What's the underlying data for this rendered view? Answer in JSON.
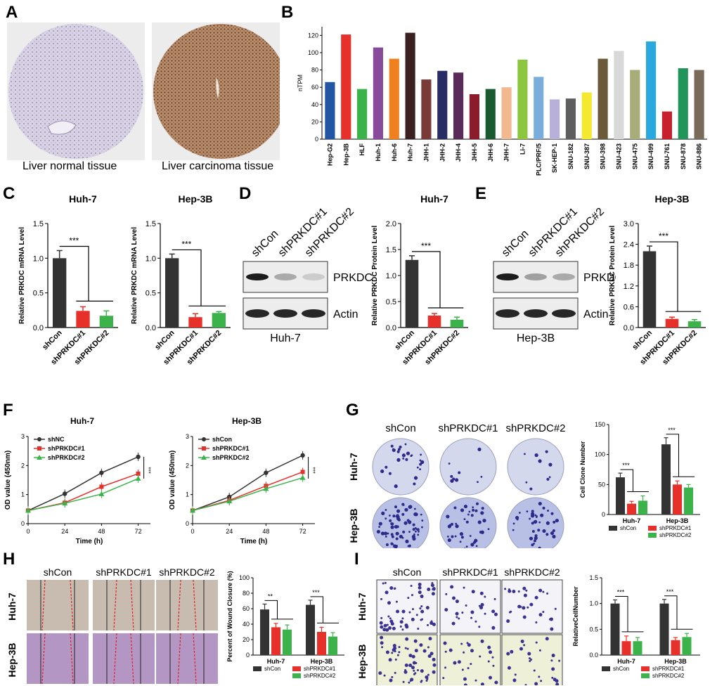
{
  "panels": {
    "A": {
      "label": "A",
      "captions": [
        "Liver normal tissue",
        "Liver carcinoma tissue"
      ]
    },
    "B": {
      "label": "B",
      "chart_data": {
        "type": "bar",
        "ylabel": "nTPM",
        "ylim": [
          0,
          130
        ],
        "yticks": [
          0,
          20,
          40,
          60,
          80,
          100,
          120
        ],
        "categories": [
          "Hep-G2",
          "Hep-3B",
          "HLF",
          "Huh-1",
          "Huh-6",
          "Huh-7",
          "JHH-1",
          "JHH-2",
          "JHH-4",
          "JHH-5",
          "JHH-6",
          "JHH-7",
          "Li-7",
          "PLC/PRF/5",
          "SK-HEP-1",
          "SNU-182",
          "SNU-387",
          "SNU-398",
          "SNU-423",
          "SNU-475",
          "SNU-499",
          "SNU-761",
          "SNU-878",
          "SNU-886"
        ],
        "values": [
          66,
          121,
          58,
          106,
          93,
          123,
          69,
          79,
          77,
          52,
          58,
          60,
          92,
          72,
          46,
          47,
          54,
          93,
          102,
          80,
          113,
          32,
          82,
          80
        ],
        "colors": [
          "#2255a4",
          "#e8302a",
          "#3cb34a",
          "#8a4a9c",
          "#f07f20",
          "#3a2020",
          "#7a3a38",
          "#2a2c66",
          "#5a2a5a",
          "#8a1c2c",
          "#1a5a30",
          "#f2b890",
          "#8cc63f",
          "#7aaddc",
          "#b8b0d8",
          "#5e5e5e",
          "#f4e830",
          "#6a5a3a",
          "#d8d8d8",
          "#a8ac78",
          "#2aa8e0",
          "#c8202c",
          "#20955a",
          "#7a6a5a"
        ]
      }
    },
    "C": {
      "label": "C",
      "charts": [
        {
          "title": "Huh-7",
          "ylabel": "Relative PRKDC mRNA Level",
          "categories": [
            "shCon",
            "shPRKDC#1",
            "shPRKDC#2"
          ],
          "values": [
            1.0,
            0.24,
            0.17
          ],
          "errors": [
            0.11,
            0.06,
            0.07
          ],
          "ylim": [
            0,
            1.5
          ],
          "yticks": [
            "0.0",
            "0.5",
            "1.0",
            "1.5"
          ],
          "sig": "***"
        },
        {
          "title": "Hep-3B",
          "ylabel": "Relative PRKDC mRNA Level",
          "categories": [
            "shCon",
            "shPRKDC#1",
            "shPRKDC#2"
          ],
          "values": [
            1.0,
            0.15,
            0.21
          ],
          "errors": [
            0.06,
            0.05,
            0.02
          ],
          "ylim": [
            0,
            1.5
          ],
          "yticks": [
            "0.0",
            "0.5",
            "1.0",
            "1.5"
          ],
          "sig": "***"
        }
      ]
    },
    "D": {
      "label": "D",
      "blot": {
        "lanes": [
          "shCon",
          "shPRKDC#1",
          "shPRKDC#2"
        ],
        "bands": [
          "PRKDC",
          "Actin"
        ],
        "cell": "Huh-7"
      },
      "chart": {
        "title": "Huh-7",
        "ylabel": "Relative PRKDC Protein Level",
        "categories": [
          "shCon",
          "shPRKDC#1",
          "shPRKDC#2"
        ],
        "values": [
          1.3,
          0.23,
          0.15
        ],
        "errors": [
          0.08,
          0.04,
          0.05
        ],
        "ylim": [
          0,
          2.0
        ],
        "yticks": [
          "0.0",
          "0.5",
          "1.0",
          "1.5",
          "2.0"
        ],
        "sig": "***"
      }
    },
    "E": {
      "label": "E",
      "blot": {
        "lanes": [
          "shCon",
          "shPRKDC#1",
          "shPRKDC#2"
        ],
        "bands": [
          "PRKDC",
          "Actin"
        ],
        "cell": "Hep-3B"
      },
      "chart": {
        "title": "Hep-3B",
        "ylabel": "Relative PRKDC Protein Level",
        "categories": [
          "shCon",
          "shPRKDC#1",
          "shPRKDC#2"
        ],
        "values": [
          2.2,
          0.25,
          0.18
        ],
        "errors": [
          0.15,
          0.05,
          0.05
        ],
        "ylim": [
          0,
          3.0
        ],
        "yticks": [
          "0.0",
          "0.6",
          "1.2",
          "1.8",
          "2.4",
          "3.0"
        ],
        "sig": "***"
      }
    },
    "F": {
      "label": "F",
      "charts": [
        {
          "title": "Huh-7",
          "xlabel": "Time (h)",
          "ylabel": "OD value (450nm)",
          "x": [
            0,
            24,
            48,
            72
          ],
          "ylim": [
            0,
            3
          ],
          "sig": "***",
          "series": [
            {
              "name": "shNC",
              "color": "#333333",
              "marker": "circle",
              "values": [
                0.45,
                1.03,
                1.75,
                2.3
              ]
            },
            {
              "name": "shPRKDC#1",
              "color": "#e8302a",
              "marker": "square",
              "values": [
                0.45,
                0.72,
                1.27,
                1.72
              ]
            },
            {
              "name": "shPRKDC#2",
              "color": "#3cb34a",
              "marker": "triangle",
              "values": [
                0.45,
                0.7,
                1.02,
                1.55
              ]
            }
          ]
        },
        {
          "title": "Hep-3B",
          "xlabel": "Time (h)",
          "ylabel": "OD value (450nm)",
          "x": [
            0,
            24,
            48,
            72
          ],
          "ylim": [
            0,
            3
          ],
          "sig": "***",
          "series": [
            {
              "name": "shCon",
              "color": "#333333",
              "marker": "circle",
              "values": [
                0.45,
                0.92,
                1.75,
                2.35
              ]
            },
            {
              "name": "shPRKDC#1",
              "color": "#e8302a",
              "marker": "square",
              "values": [
                0.45,
                0.8,
                1.3,
                1.78
              ]
            },
            {
              "name": "shPRKDC#2",
              "color": "#3cb34a",
              "marker": "triangle",
              "values": [
                0.45,
                0.77,
                1.2,
                1.58
              ]
            }
          ]
        }
      ]
    },
    "G": {
      "label": "G",
      "columns": [
        "shCon",
        "shPRKDC#1",
        "shPRKDC#2"
      ],
      "rows": [
        "Huh-7",
        "Hep-3B"
      ],
      "chart": {
        "ylabel": "Cell Clone Number",
        "groups": [
          "Huh-7",
          "Hep-3B"
        ],
        "ylim": [
          0,
          150
        ],
        "yticks": [
          "0",
          "50",
          "100",
          "150"
        ],
        "sig": [
          "***",
          "***"
        ],
        "series": [
          {
            "name": "shCon",
            "color": "#333333",
            "values": [
              62,
              117
            ],
            "errors": [
              7,
              11
            ]
          },
          {
            "name": "shPRKDC#1",
            "color": "#e8302a",
            "values": [
              18,
              50
            ],
            "errors": [
              4,
              6
            ]
          },
          {
            "name": "shPRKDC#2",
            "color": "#3cb34a",
            "values": [
              23,
              45
            ],
            "errors": [
              8,
              5
            ]
          }
        ]
      }
    },
    "H": {
      "label": "H",
      "columns": [
        "shCon",
        "shPRKDC#1",
        "shPRKDC#2"
      ],
      "rows": [
        "Huh-7",
        "Hep-3B"
      ],
      "chart": {
        "ylabel": "Percent of Wound Closure (%)",
        "groups": [
          "Huh-7",
          "Hep-3B"
        ],
        "ylim": [
          0,
          100
        ],
        "yticks": [
          "0",
          "20",
          "40",
          "60",
          "80",
          "100"
        ],
        "sig": [
          "**",
          "***"
        ],
        "series": [
          {
            "name": "shCon",
            "color": "#333333",
            "values": [
              59,
              65
            ],
            "errors": [
              7,
              6
            ]
          },
          {
            "name": "shPRKDC#1",
            "color": "#e8302a",
            "values": [
              36,
              30
            ],
            "errors": [
              5,
              6
            ]
          },
          {
            "name": "shPRKDC#2",
            "color": "#3cb34a",
            "values": [
              33,
              24
            ],
            "errors": [
              6,
              5
            ]
          }
        ]
      }
    },
    "I": {
      "label": "I",
      "columns": [
        "shCon",
        "shPRKDC#1",
        "shPRKDC#2"
      ],
      "rows": [
        "Huh-7",
        "Hep-3B"
      ],
      "chart": {
        "ylabel": "RelativeCellNumber",
        "groups": [
          "Huh-7",
          "Hep-3B"
        ],
        "ylim": [
          0,
          1.5
        ],
        "yticks": [
          "0.0",
          "0.5",
          "1.0",
          "1.5"
        ],
        "sig": [
          "***",
          "***"
        ],
        "series": [
          {
            "name": "shCon",
            "color": "#333333",
            "values": [
              1.0,
              1.0
            ],
            "errors": [
              0.07,
              0.08
            ]
          },
          {
            "name": "shPRKDC#1",
            "color": "#e8302a",
            "values": [
              0.27,
              0.29
            ],
            "errors": [
              0.1,
              0.05
            ]
          },
          {
            "name": "shPRKDC#2",
            "color": "#3cb34a",
            "values": [
              0.27,
              0.35
            ],
            "errors": [
              0.07,
              0.07
            ]
          }
        ]
      }
    }
  }
}
